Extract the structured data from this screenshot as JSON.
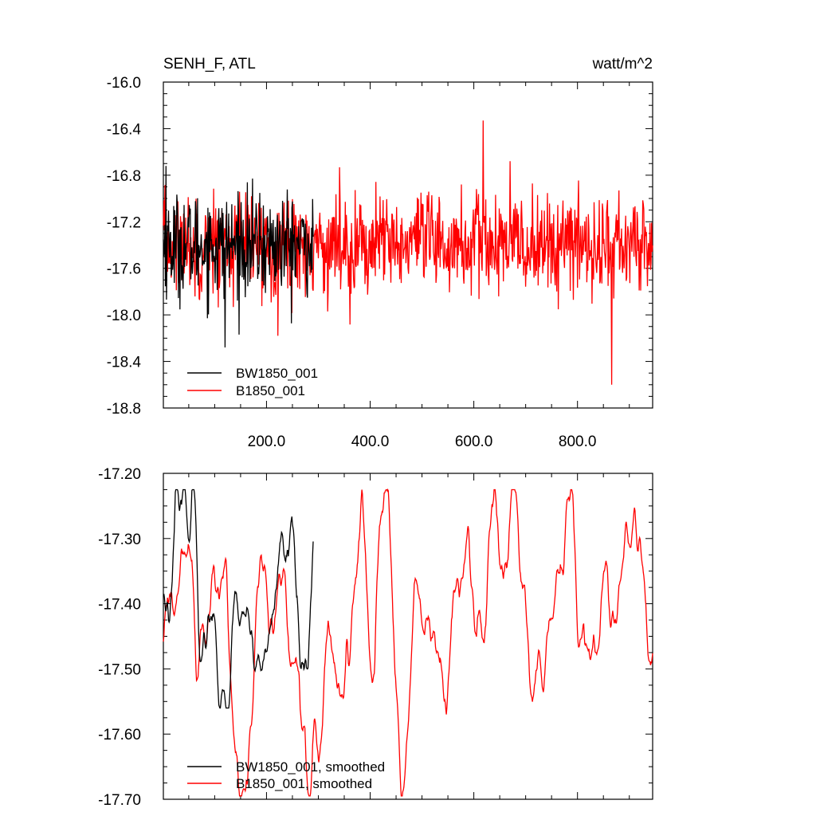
{
  "chart_data": [
    {
      "type": "line",
      "title": "SENH_F, ATL",
      "units": "watt/m^2",
      "xlim": [
        1,
        945
      ],
      "ylim": [
        -18.8,
        -16.0
      ],
      "x_ticks": [
        200,
        400,
        600,
        800
      ],
      "x_tick_labels": [
        "200.0",
        "400.0",
        "600.0",
        "800.0"
      ],
      "y_ticks": [
        -16.0,
        -16.4,
        -16.8,
        -17.2,
        -17.6,
        -18.0,
        -18.4,
        -18.8
      ],
      "y_tick_labels": [
        "-16.0",
        "-16.4",
        "-16.8",
        "-17.2",
        "-17.6",
        "-18.0",
        "-18.4",
        "-18.8"
      ],
      "legend_position": "bottom-left",
      "series": [
        {
          "name": "BW1850_001",
          "color": "#000000",
          "x_range": [
            1,
            290
          ],
          "approx_mean": -17.4,
          "approx_min": -18.28,
          "approx_max": -16.72
        },
        {
          "name": "B1850_001",
          "color": "#ff0000",
          "x_range": [
            1,
            945
          ],
          "approx_mean": -17.4,
          "approx_min": -18.6,
          "approx_max": -16.33
        }
      ]
    },
    {
      "type": "line",
      "title": "",
      "xlim": [
        1,
        945
      ],
      "ylim": [
        -17.7,
        -17.2
      ],
      "x_ticks": [
        200,
        400,
        600,
        800
      ],
      "x_tick_labels": [],
      "y_ticks": [
        -17.2,
        -17.3,
        -17.4,
        -17.5,
        -17.6,
        -17.7
      ],
      "y_tick_labels": [
        "-17.20",
        "-17.30",
        "-17.40",
        "-17.50",
        "-17.60",
        "-17.70"
      ],
      "legend_position": "bottom-left",
      "series": [
        {
          "name": "BW1850_001, smoothed",
          "color": "#000000",
          "x_range": [
            1,
            290
          ],
          "approx_min": -17.56,
          "approx_max": -17.225
        },
        {
          "name": "B1850_001, smoothed",
          "color": "#ff0000",
          "x_range": [
            1,
            945
          ],
          "approx_min": -17.695,
          "approx_max": -17.225
        }
      ]
    }
  ]
}
